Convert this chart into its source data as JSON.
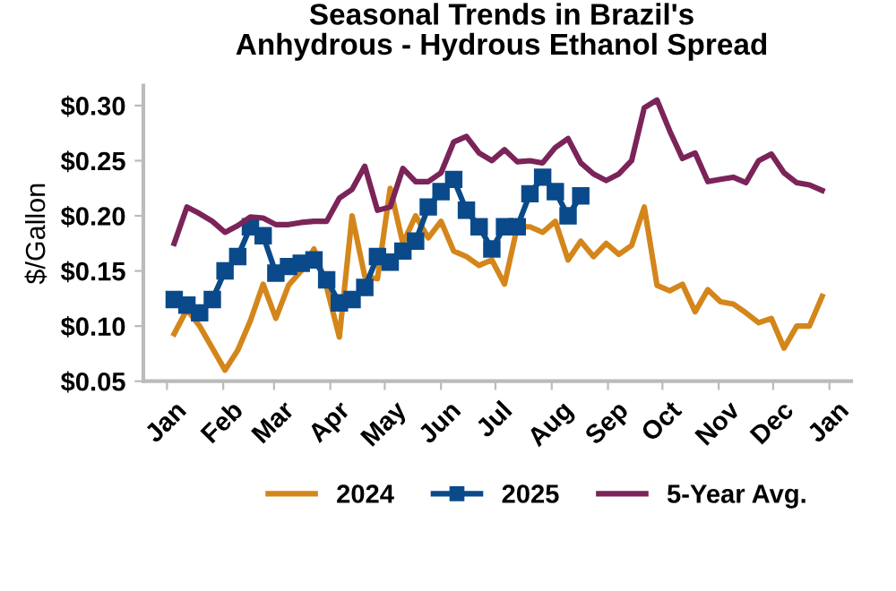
{
  "chart_data": {
    "type": "line",
    "title": "Seasonal Trends in Brazil's\nAnhydrous - Hydrous Ethanol Spread",
    "ylabel": "$/Gallon",
    "x": [
      "2025-01-05",
      "2025-01-12",
      "2025-01-19",
      "2025-01-26",
      "2025-02-02",
      "2025-02-09",
      "2025-02-16",
      "2025-02-23",
      "2025-03-02",
      "2025-03-09",
      "2025-03-16",
      "2025-03-23",
      "2025-03-30",
      "2025-04-06",
      "2025-04-13",
      "2025-04-20",
      "2025-04-27",
      "2025-05-04",
      "2025-05-11",
      "2025-05-18",
      "2025-05-25",
      "2025-06-01",
      "2025-06-08",
      "2025-06-15",
      "2025-06-22",
      "2025-06-29",
      "2025-07-06",
      "2025-07-13",
      "2025-07-20",
      "2025-07-27",
      "2025-08-03",
      "2025-08-10",
      "2025-08-17",
      "2025-08-24",
      "2025-08-31",
      "2025-09-07",
      "2025-09-14",
      "2025-09-21",
      "2025-09-28",
      "2025-10-05",
      "2025-10-12",
      "2025-10-19",
      "2025-10-26",
      "2025-11-02",
      "2025-11-09",
      "2025-11-16",
      "2025-11-23",
      "2025-11-30",
      "2025-12-07",
      "2025-12-14",
      "2025-12-21",
      "2025-12-28"
    ],
    "series": [
      {
        "name": "2024",
        "color": "#d4861b",
        "marker": "none",
        "values": [
          0.093,
          0.115,
          0.1,
          0.08,
          0.06,
          0.078,
          0.105,
          0.138,
          0.107,
          0.137,
          0.15,
          0.17,
          0.135,
          0.09,
          0.2,
          0.145,
          0.143,
          0.225,
          0.175,
          0.2,
          0.18,
          0.195,
          0.168,
          0.163,
          0.155,
          0.16,
          0.138,
          0.19,
          0.19,
          0.185,
          0.195,
          0.16,
          0.177,
          0.163,
          0.175,
          0.165,
          0.173,
          0.208,
          0.137,
          0.132,
          0.138,
          0.113,
          0.133,
          0.122,
          0.12,
          0.112,
          0.103,
          0.107,
          0.08,
          0.1,
          0.1,
          0.127
        ]
      },
      {
        "name": "2025",
        "color": "#0a4a8a",
        "marker": "square",
        "values": [
          0.124,
          0.119,
          0.112,
          0.124,
          0.15,
          0.163,
          0.19,
          0.182,
          0.148,
          0.154,
          0.157,
          0.16,
          0.142,
          0.121,
          0.124,
          0.135,
          0.163,
          0.158,
          0.168,
          0.177,
          0.208,
          0.222,
          0.233,
          0.205,
          0.19,
          0.17,
          0.19,
          0.19,
          0.22,
          0.235,
          0.222,
          0.2,
          0.218,
          null,
          null,
          null,
          null,
          null,
          null,
          null,
          null,
          null,
          null,
          null,
          null,
          null,
          null,
          null,
          null,
          null,
          null,
          null
        ]
      },
      {
        "name": "5-Year Avg.",
        "color": "#7b2459",
        "marker": "none",
        "values": [
          0.175,
          0.208,
          0.202,
          0.195,
          0.185,
          0.191,
          0.199,
          0.198,
          0.192,
          0.192,
          0.194,
          0.195,
          0.195,
          0.216,
          0.224,
          0.245,
          0.205,
          0.208,
          0.243,
          0.231,
          0.231,
          0.239,
          0.267,
          0.272,
          0.257,
          0.25,
          0.26,
          0.249,
          0.25,
          0.248,
          0.262,
          0.27,
          0.248,
          0.238,
          0.232,
          0.238,
          0.25,
          0.298,
          0.305,
          0.277,
          0.252,
          0.257,
          0.231,
          0.233,
          0.235,
          0.23,
          0.25,
          0.256,
          0.239,
          0.23,
          0.228,
          0.223
        ]
      }
    ],
    "xlim": [
      "2024-12-19",
      "2026-01-13"
    ],
    "xticks": [
      {
        "value": "2025-01-01",
        "label": "Jan"
      },
      {
        "value": "2025-02-01",
        "label": "Feb"
      },
      {
        "value": "2025-03-01",
        "label": "Mar"
      },
      {
        "value": "2025-04-01",
        "label": "Apr"
      },
      {
        "value": "2025-05-01",
        "label": "May"
      },
      {
        "value": "2025-06-01",
        "label": "Jun"
      },
      {
        "value": "2025-07-01",
        "label": "Jul"
      },
      {
        "value": "2025-08-01",
        "label": "Aug"
      },
      {
        "value": "2025-09-01",
        "label": "Sep"
      },
      {
        "value": "2025-10-01",
        "label": "Oct"
      },
      {
        "value": "2025-11-01",
        "label": "Nov"
      },
      {
        "value": "2025-12-01",
        "label": "Dec"
      },
      {
        "value": "2026-01-01",
        "label": "Jan"
      }
    ],
    "ylim": [
      0.05,
      0.318
    ],
    "yticks": [
      {
        "value": 0.05,
        "label": "$0.05"
      },
      {
        "value": 0.1,
        "label": "$0.10"
      },
      {
        "value": 0.15,
        "label": "$0.15"
      },
      {
        "value": 0.2,
        "label": "$0.20"
      },
      {
        "value": 0.25,
        "label": "$0.25"
      },
      {
        "value": 0.3,
        "label": "$0.30"
      }
    ],
    "grid": false,
    "legend": "bottom",
    "line_style": "solid"
  }
}
